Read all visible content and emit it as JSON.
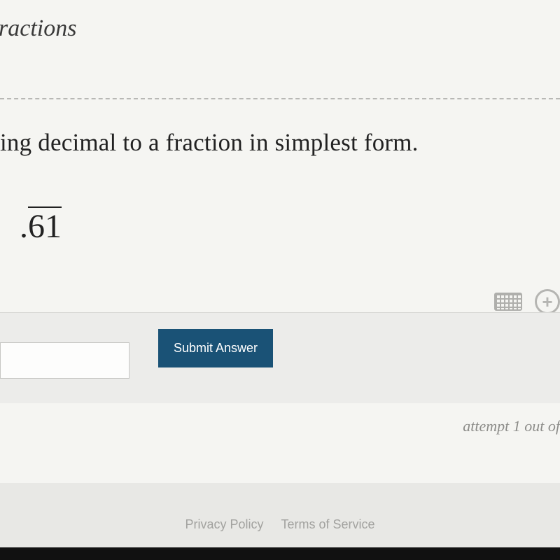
{
  "page": {
    "title_partial": "ractions",
    "question_partial": "ing decimal to a fraction in simplest form.",
    "decimal_prefix": ".",
    "decimal_repeating": "61",
    "answer_value": "",
    "submit_label": "Submit Answer",
    "attempt_text": "attempt 1 out of",
    "footer": {
      "privacy": "Privacy Policy",
      "terms": "Terms of Service"
    }
  },
  "style": {
    "bg_content": "#f5f5f2",
    "bg_body": "#e8e8e5",
    "divider_color": "#b8b8b5",
    "text_color": "#222",
    "muted_color": "#8c8c89",
    "button_bg": "#1a5276",
    "button_fg": "#ffffff",
    "input_border": "#c6c6c3",
    "title_fontsize": 34,
    "question_fontsize": 35,
    "decimal_fontsize": 48,
    "button_fontsize": 18,
    "footer_fontsize": 18
  }
}
